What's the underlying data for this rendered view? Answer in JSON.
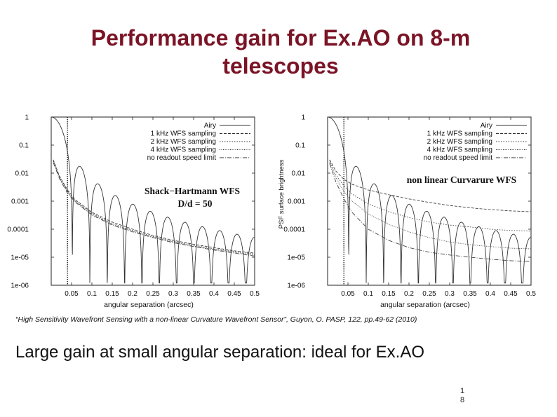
{
  "slide": {
    "title_line1": "Performance gain for Ex.AO on 8-m",
    "title_line2": "telescopes",
    "citation": "“High Sensitivity Wavefront Sensing with a non-linear Curvature Wavefront Sensor”, Guyon, O. PASP, 122, pp.49-62 (2010)",
    "takeaway": "Large gain at small angular separation: ideal for Ex.AO",
    "page_number_top": "1",
    "page_number_bottom": "8"
  },
  "chart_data": [
    {
      "type": "line",
      "panel": "left",
      "annotation": [
        "Shack−Hartmann WFS",
        "D/d = 50"
      ],
      "xlabel": "angular separation (arcsec)",
      "ylabel": "",
      "xlim": [
        0,
        0.5
      ],
      "ylim": [
        1e-06,
        1
      ],
      "yscale": "log",
      "xticks": [
        "0.05",
        "0.1",
        "0.15",
        "0.2",
        "0.25",
        "0.3",
        "0.35",
        "0.4",
        "0.45",
        "0.5"
      ],
      "yticks": [
        "1",
        "0.1",
        "0.01",
        "0.001",
        "0.0001",
        "1e-05",
        "1e-06"
      ],
      "vline_x": 0.04,
      "legend": [
        "Airy",
        "1 kHz WFS sampling",
        "2 kHz WFS sampling",
        "4 kHz WFS sampling",
        "no readout speed limit"
      ],
      "series": [
        {
          "name": "1 kHz WFS sampling",
          "x": [
            0.005,
            0.02,
            0.04,
            0.06,
            0.1,
            0.15,
            0.2,
            0.25,
            0.3,
            0.35,
            0.4,
            0.45,
            0.5
          ],
          "y": [
            0.03,
            0.008,
            0.0025,
            0.0011,
            0.0004,
            0.00018,
            0.0001,
            6e-05,
            4e-05,
            2.9e-05,
            2.2e-05,
            1.7e-05,
            1.4e-05
          ]
        },
        {
          "name": "2 kHz WFS sampling",
          "x": [
            0.005,
            0.02,
            0.04,
            0.06,
            0.1,
            0.15,
            0.2,
            0.25,
            0.3,
            0.35,
            0.4,
            0.45,
            0.5
          ],
          "y": [
            0.028,
            0.0075,
            0.0023,
            0.001,
            0.00037,
            0.00016,
            9e-05,
            5.5e-05,
            3.7e-05,
            2.7e-05,
            2e-05,
            1.6e-05,
            1.3e-05
          ]
        },
        {
          "name": "4 kHz WFS sampling",
          "x": [
            0.005,
            0.02,
            0.04,
            0.06,
            0.1,
            0.15,
            0.2,
            0.25,
            0.3,
            0.35,
            0.4,
            0.45,
            0.5
          ],
          "y": [
            0.026,
            0.007,
            0.0021,
            0.00095,
            0.00034,
            0.00015,
            8.5e-05,
            5.2e-05,
            3.5e-05,
            2.5e-05,
            1.9e-05,
            1.5e-05,
            1.2e-05
          ]
        },
        {
          "name": "no readout speed limit",
          "x": [
            0.005,
            0.02,
            0.04,
            0.06,
            0.1,
            0.15,
            0.2,
            0.25,
            0.3,
            0.35,
            0.4,
            0.45,
            0.5
          ],
          "y": [
            0.024,
            0.0065,
            0.0019,
            0.0009,
            0.00032,
            0.00014,
            8e-05,
            5e-05,
            3.3e-05,
            2.4e-05,
            1.8e-05,
            1.4e-05,
            1.1e-05
          ]
        }
      ]
    },
    {
      "type": "line",
      "panel": "right",
      "annotation": [
        "non linear Curvarure WFS"
      ],
      "xlabel": "angular separation (arcsec)",
      "ylabel": "PSF surface brightness",
      "xlim": [
        0,
        0.5
      ],
      "ylim": [
        1e-06,
        1
      ],
      "yscale": "log",
      "xticks": [
        "0.05",
        "0.1",
        "0.15",
        "0.2",
        "0.25",
        "0.3",
        "0.35",
        "0.4",
        "0.45",
        "0.5"
      ],
      "yticks": [
        "1",
        "0.1",
        "0.01",
        "0.001",
        "0.0001",
        "1e-05",
        "1e-06"
      ],
      "vline_x": 0.04,
      "legend": [
        "Airy",
        "1 kHz WFS sampling",
        "2 kHz WFS sampling",
        "4 kHz WFS sampling",
        "no readout speed limit"
      ],
      "series": [
        {
          "name": "1 kHz WFS sampling",
          "x": [
            0.005,
            0.02,
            0.04,
            0.06,
            0.1,
            0.15,
            0.2,
            0.25,
            0.3,
            0.35,
            0.4,
            0.45,
            0.5
          ],
          "y": [
            0.03,
            0.012,
            0.006,
            0.004,
            0.0025,
            0.0017,
            0.0012,
            0.0009,
            0.0007,
            0.00058,
            0.0005,
            0.00045,
            0.00042
          ]
        },
        {
          "name": "2 kHz WFS sampling",
          "x": [
            0.005,
            0.02,
            0.04,
            0.06,
            0.1,
            0.15,
            0.2,
            0.25,
            0.3,
            0.35,
            0.4,
            0.45,
            0.5
          ],
          "y": [
            0.028,
            0.009,
            0.0035,
            0.0018,
            0.0008,
            0.00042,
            0.00026,
            0.00018,
            0.00014,
            0.00012,
            0.0001,
            9e-05,
            8.5e-05
          ]
        },
        {
          "name": "4 kHz WFS sampling",
          "x": [
            0.005,
            0.02,
            0.04,
            0.06,
            0.1,
            0.15,
            0.2,
            0.25,
            0.3,
            0.35,
            0.4,
            0.45,
            0.5
          ],
          "y": [
            0.025,
            0.007,
            0.0022,
            0.001,
            0.00035,
            0.00015,
            8e-05,
            5e-05,
            3.5e-05,
            2.8e-05,
            2.4e-05,
            2.1e-05,
            2e-05
          ]
        },
        {
          "name": "no readout speed limit",
          "x": [
            0.005,
            0.02,
            0.04,
            0.06,
            0.1,
            0.15,
            0.2,
            0.25,
            0.3,
            0.35,
            0.4,
            0.45,
            0.5
          ],
          "y": [
            0.022,
            0.005,
            0.0012,
            0.0004,
            0.0001,
            4e-05,
            2.2e-05,
            1.5e-05,
            1.2e-05,
            1e-05,
            8.5e-06,
            7.5e-06,
            7e-06
          ]
        }
      ]
    }
  ]
}
